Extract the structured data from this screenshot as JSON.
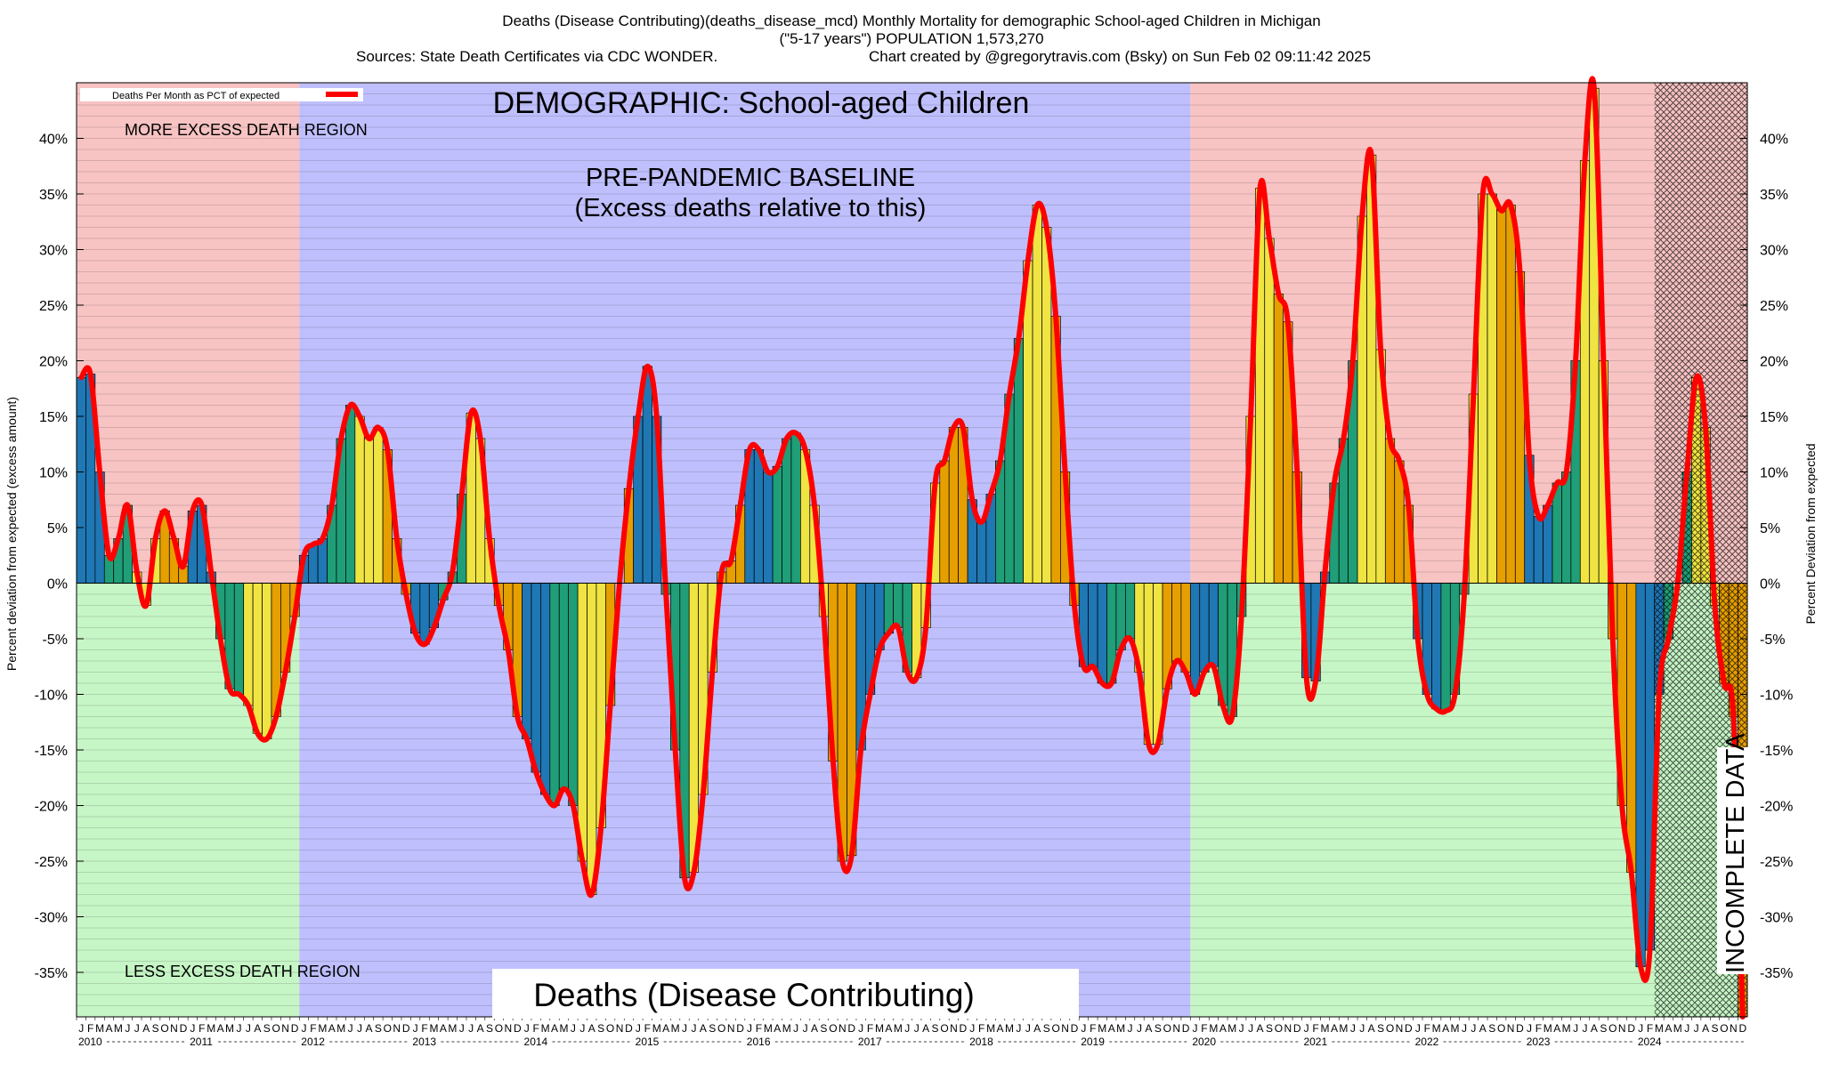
{
  "header": {
    "line1": "Deaths (Disease Contributing)(deaths_disease_mcd) Monthly Mortality for demographic School-aged Children in Michigan",
    "line2": "(\"5-17 years\") POPULATION 1,573,270",
    "line3_left": "Sources: State Death Certificates via CDC WONDER.",
    "line3_right": "Chart created by @gregorytravis.com (Bsky) on Sun Feb 02 09:11:42 2025"
  },
  "labels": {
    "demographic": "DEMOGRAPHIC: School-aged Children",
    "baseline_line1": "PRE-PANDEMIC BASELINE",
    "baseline_line2": "(Excess deaths relative to this)",
    "more_region": "MORE EXCESS DEATH REGION",
    "less_region": "LESS EXCESS DEATH REGION",
    "metric_box": "Deaths (Disease Contributing)",
    "incomplete": "INCOMPLETE DATA",
    "legend": "Deaths Per Month as PCT of expected"
  },
  "colors": {
    "positive_region": "#f7c3c3",
    "negative_region": "#c6f5c6",
    "baseline_region": "#bfbffd",
    "line": "#ff0000",
    "bar_palette": [
      "#1f77b4",
      "#1f77b4",
      "#1f77b4",
      "#1f9e77",
      "#1f9e77",
      "#1f9e77",
      "#f0e442",
      "#f0e442",
      "#f0e442",
      "#e69f00",
      "#e69f00",
      "#e69f00"
    ]
  },
  "chart_data": {
    "type": "bar",
    "title": "Deaths (Disease Contributing)(deaths_disease_mcd) Monthly Mortality for demographic School-aged Children in Michigan",
    "ylabel_left": "Percent deviation from expected (excess amount)",
    "ylabel_right": "Percent Deviation from expected",
    "ylim": [
      -39,
      45
    ],
    "yticks": [
      -35,
      -30,
      -25,
      -20,
      -15,
      -10,
      -5,
      0,
      5,
      10,
      15,
      20,
      25,
      30,
      35,
      40
    ],
    "legend_position": "top-left",
    "grid": true,
    "month_letters": [
      "J",
      "F",
      "M",
      "A",
      "M",
      "J",
      "J",
      "A",
      "S",
      "O",
      "N",
      "D"
    ],
    "years": [
      "2010",
      "2011",
      "2012",
      "2013",
      "2014",
      "2015",
      "2016",
      "2017",
      "2018",
      "2019",
      "2020",
      "2021",
      "2022",
      "2023",
      "2024"
    ],
    "regions": [
      {
        "label": "pre-baseline",
        "start": "2010-01",
        "end": "2011-12"
      },
      {
        "label": "baseline",
        "start": "2012-01",
        "end": "2019-12"
      },
      {
        "label": "post-baseline",
        "start": "2020-01",
        "end": "2024-12"
      }
    ],
    "incomplete_data_from": "2024-03",
    "series": [
      {
        "name": "Deaths Per Month as PCT of expected",
        "start": "2010-01",
        "values": [
          18.5,
          18.8,
          10,
          2.5,
          4,
          7,
          1,
          -2,
          4,
          6.5,
          4,
          1.5,
          6.5,
          7,
          1,
          -5,
          -9.5,
          -10,
          -11,
          -13.5,
          -14,
          -12,
          -8,
          -3,
          2.5,
          3.5,
          4,
          7,
          13,
          16,
          15,
          13,
          14,
          12,
          4,
          -1,
          -4.5,
          -5.5,
          -4,
          -1.5,
          1,
          8,
          15.3,
          13,
          4,
          -2,
          -6,
          -12,
          -14,
          -17,
          -19,
          -20,
          -18.5,
          -20,
          -25,
          -28,
          -22,
          -11,
          0,
          8.5,
          15,
          19.5,
          15,
          -1,
          -15,
          -26.5,
          -26,
          -19,
          -8,
          1,
          2,
          7,
          12,
          12,
          10,
          10.5,
          13,
          13.5,
          12,
          7,
          -3,
          -16,
          -25,
          -24.5,
          -15,
          -10,
          -6,
          -4.5,
          -4,
          -8,
          -8.5,
          -4,
          9,
          11,
          14,
          14,
          7.5,
          5.5,
          8,
          11,
          17,
          22,
          29,
          34,
          32,
          24,
          10,
          -2,
          -7.5,
          -7.5,
          -9,
          -9,
          -6,
          -5,
          -8,
          -14.5,
          -14.5,
          -9.5,
          -7,
          -8,
          -10,
          -8,
          -7.5,
          -11,
          -12,
          -3,
          15,
          35.5,
          31,
          26,
          23.5,
          10,
          -8.5,
          -8.8,
          1,
          9,
          13,
          20,
          33,
          38.5,
          21,
          13,
          11,
          7,
          -5,
          -10,
          -11.3,
          -11.5,
          -10,
          -1,
          17,
          35,
          35,
          33.5,
          34,
          28,
          11.5,
          6,
          7,
          9,
          10,
          20,
          38,
          44.5,
          20,
          -5,
          -20,
          -26,
          -34.5,
          -33,
          -10,
          -5,
          0,
          10,
          18.5,
          14,
          -2,
          -9,
          -12,
          -39
        ]
      }
    ]
  }
}
